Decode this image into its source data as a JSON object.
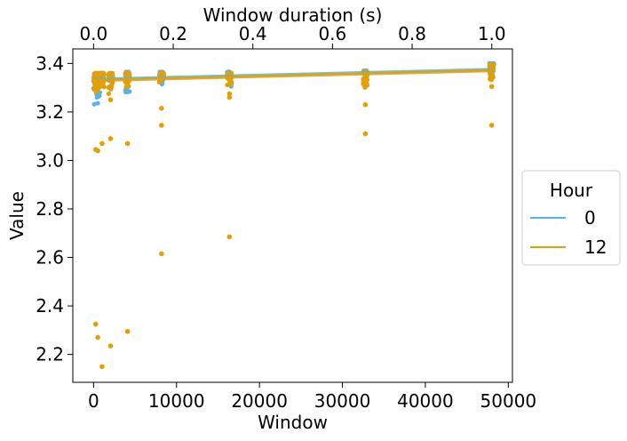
{
  "chart_data": {
    "type": "scatter",
    "xlabel": "Window",
    "ylabel": "Value",
    "secondary_xlabel": "Window duration (s)",
    "xlim": [
      -2500,
      50500
    ],
    "ylim": [
      2.085,
      3.46
    ],
    "x_ticks": [
      0,
      10000,
      20000,
      30000,
      40000,
      50000
    ],
    "x_tick_labels": [
      "0",
      "10000",
      "20000",
      "30000",
      "40000",
      "50000"
    ],
    "y_ticks": [
      2.2,
      2.4,
      2.6,
      2.8,
      3.0,
      3.2,
      3.4
    ],
    "y_tick_labels": [
      "2.2",
      "2.4",
      "2.6",
      "2.8",
      "3.0",
      "3.2",
      "3.4"
    ],
    "secondary_x_ticks": [
      0.0,
      0.2,
      0.4,
      0.6,
      0.8,
      1.0
    ],
    "secondary_x_tick_labels": [
      "0.0",
      "0.2",
      "0.4",
      "0.6",
      "0.8",
      "1.0"
    ],
    "secondary_x_per_primary": 2.083e-05,
    "grid": false,
    "legend": {
      "title": "Hour",
      "placement": "right-outside",
      "entries": [
        "0",
        "12"
      ]
    },
    "series": [
      {
        "name": "0",
        "color": "#56B4E9",
        "trend": [
          [
            256,
            3.335
          ],
          [
            48000,
            3.375
          ]
        ],
        "clusters": [
          {
            "x": 256,
            "y_min": 3.22,
            "y_max": 3.345
          },
          {
            "x": 512,
            "y_min": 3.25,
            "y_max": 3.355
          },
          {
            "x": 1024,
            "y_min": 3.28,
            "y_max": 3.36
          },
          {
            "x": 2048,
            "y_min": 3.29,
            "y_max": 3.36
          },
          {
            "x": 4096,
            "y_min": 3.26,
            "y_max": 3.365
          },
          {
            "x": 8192,
            "y_min": 3.31,
            "y_max": 3.365
          },
          {
            "x": 16384,
            "y_min": 3.3,
            "y_max": 3.365
          },
          {
            "x": 32768,
            "y_min": 3.3,
            "y_max": 3.37
          },
          {
            "x": 48000,
            "y_min": 3.34,
            "y_max": 3.4
          }
        ],
        "outliers": []
      },
      {
        "name": "12",
        "color": "#E69F00",
        "trend": [
          [
            256,
            3.33
          ],
          [
            48000,
            3.37
          ]
        ],
        "clusters": [
          {
            "x": 256,
            "y_min": 3.29,
            "y_max": 3.36
          },
          {
            "x": 512,
            "y_min": 3.28,
            "y_max": 3.36
          },
          {
            "x": 1024,
            "y_min": 3.3,
            "y_max": 3.36
          },
          {
            "x": 2048,
            "y_min": 3.27,
            "y_max": 3.36
          },
          {
            "x": 4096,
            "y_min": 3.3,
            "y_max": 3.36
          },
          {
            "x": 8192,
            "y_min": 3.32,
            "y_max": 3.36
          },
          {
            "x": 16384,
            "y_min": 3.31,
            "y_max": 3.36
          },
          {
            "x": 32768,
            "y_min": 3.3,
            "y_max": 3.365
          },
          {
            "x": 48000,
            "y_min": 3.33,
            "y_max": 3.395
          }
        ],
        "outliers": [
          [
            256,
            3.045
          ],
          [
            512,
            3.04
          ],
          [
            256,
            2.325
          ],
          [
            512,
            2.27
          ],
          [
            1024,
            3.07
          ],
          [
            1024,
            2.15
          ],
          [
            2048,
            3.09
          ],
          [
            2048,
            3.25
          ],
          [
            2048,
            2.235
          ],
          [
            4096,
            3.07
          ],
          [
            4096,
            2.295
          ],
          [
            8192,
            3.215
          ],
          [
            8192,
            3.145
          ],
          [
            8192,
            2.615
          ],
          [
            16384,
            3.26
          ],
          [
            16384,
            3.275
          ],
          [
            16384,
            2.685
          ],
          [
            32768,
            3.23
          ],
          [
            32768,
            3.11
          ],
          [
            48000,
            3.305
          ],
          [
            48000,
            3.145
          ]
        ]
      }
    ]
  }
}
